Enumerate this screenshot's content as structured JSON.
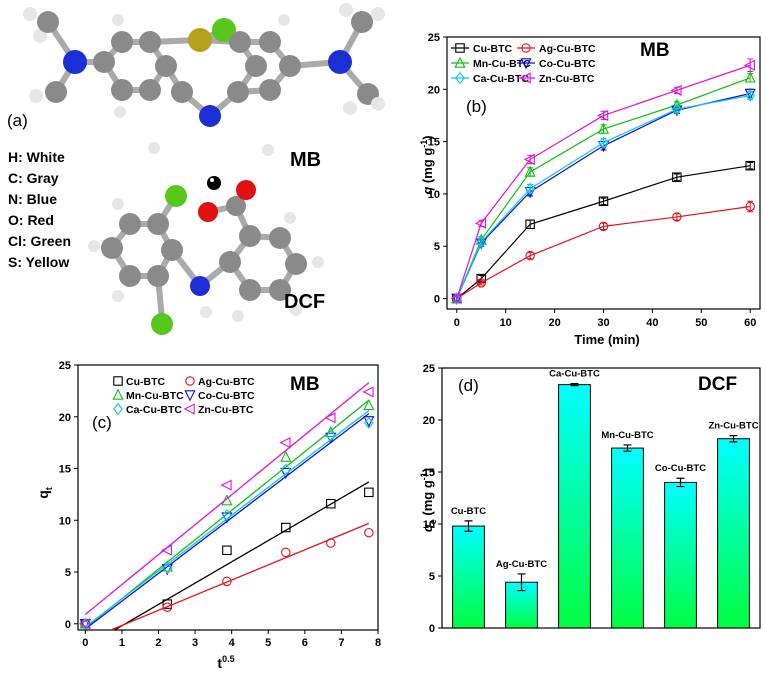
{
  "legend_atoms": {
    "panel_label": "(a)",
    "items": [
      "H: White",
      "C: Gray",
      "N: Blue",
      "O: Red",
      "Cl: Green",
      "S: Yellow"
    ],
    "mol1_label": "MB",
    "mol2_label": "DCF",
    "colors": {
      "H": "#e6e6e6",
      "C": "#8a8a8a",
      "N": "#1b2fd6",
      "O": "#e01010",
      "Cl": "#56c81c",
      "S": "#b5a21a"
    }
  },
  "chart_data": [
    {
      "panel": "(b)",
      "type": "line",
      "title": "MB",
      "xlabel": "Time (min)",
      "ylabel_parts": [
        "q",
        " (mg g",
        "-1",
        ")"
      ],
      "x": [
        0,
        5,
        15,
        30,
        45,
        60
      ],
      "xlim": [
        -2,
        62
      ],
      "ylim": [
        -1,
        25
      ],
      "xticks": [
        0,
        10,
        20,
        30,
        40,
        50,
        60
      ],
      "yticks": [
        0,
        5,
        10,
        15,
        20,
        25
      ],
      "series": [
        {
          "name": "Cu-BTC",
          "color": "#000000",
          "marker": "square",
          "values": [
            0,
            1.9,
            7.1,
            9.3,
            11.6,
            12.7
          ],
          "errors": [
            0.2,
            0.3,
            0.4,
            0.3,
            0.3,
            0.3
          ]
        },
        {
          "name": "Ag-Cu-BTC",
          "color": "#e8101a",
          "marker": "circle",
          "values": [
            0,
            1.5,
            4.1,
            6.9,
            7.8,
            8.8
          ],
          "errors": [
            0.2,
            0.2,
            0.3,
            0.3,
            0.3,
            0.5
          ]
        },
        {
          "name": "Mn-Cu-BTC",
          "color": "#10c010",
          "marker": "triangle",
          "values": [
            0,
            5.6,
            12.1,
            16.2,
            18.5,
            21.1
          ],
          "errors": [
            0.3,
            0.3,
            0.4,
            0.4,
            0.3,
            0.4
          ]
        },
        {
          "name": "Co-Cu-BTC",
          "color": "#0a10d8",
          "marker": "triangle-down",
          "values": [
            0,
            5.3,
            10.2,
            14.6,
            18.0,
            19.6
          ],
          "errors": [
            0.3,
            0.3,
            0.4,
            0.4,
            0.3,
            0.4
          ]
        },
        {
          "name": "Ca-Cu-BTC",
          "color": "#10c8e8",
          "marker": "diamond",
          "values": [
            0,
            5.4,
            10.5,
            14.9,
            18.1,
            19.4
          ],
          "errors": [
            0.3,
            0.3,
            0.4,
            0.4,
            0.3,
            0.4
          ]
        },
        {
          "name": "Zn-Cu-BTC",
          "color": "#e010e0",
          "marker": "triangle-left",
          "values": [
            0,
            7.2,
            13.3,
            17.5,
            19.9,
            22.3
          ],
          "errors": [
            0.3,
            0.3,
            0.4,
            0.4,
            0.3,
            0.6
          ]
        }
      ]
    },
    {
      "panel": "(c)",
      "type": "scatter",
      "title": "MB",
      "xlabel_base": "t",
      "xlabel_sup": "0.5",
      "ylabel_base": "q",
      "ylabel_sub": "t",
      "x": [
        0,
        2.24,
        3.87,
        5.48,
        6.71,
        7.75
      ],
      "xlim": [
        -0.2,
        8
      ],
      "ylim": [
        -0.6,
        25
      ],
      "xticks": [
        0,
        1,
        2,
        3,
        4,
        5,
        6,
        7,
        8
      ],
      "yticks": [
        0,
        5,
        10,
        15,
        20,
        25
      ],
      "series": [
        {
          "name": "Cu-BTC",
          "color": "#000000",
          "marker": "square",
          "values": [
            0,
            1.9,
            7.1,
            9.3,
            11.6,
            12.7
          ],
          "fit": [
            [
              0.8,
              -0.6
            ],
            [
              7.75,
              13.7
            ]
          ]
        },
        {
          "name": "Ag-Cu-BTC",
          "color": "#e8101a",
          "marker": "circle",
          "values": [
            0,
            1.6,
            4.1,
            6.9,
            7.8,
            8.8
          ],
          "fit": [
            [
              0.7,
              -0.6
            ],
            [
              7.75,
              9.7
            ]
          ]
        },
        {
          "name": "Mn-Cu-BTC",
          "color": "#10c010",
          "marker": "triangle",
          "values": [
            0,
            5.5,
            11.9,
            16.1,
            18.5,
            21.1
          ],
          "fit": [
            [
              0,
              -0.4
            ],
            [
              7.75,
              21.6
            ]
          ]
        },
        {
          "name": "Co-Cu-BTC",
          "color": "#0a10d8",
          "marker": "triangle-down",
          "values": [
            0,
            5.3,
            10.3,
            14.6,
            18.0,
            19.6
          ],
          "fit": [
            [
              0,
              -0.5
            ],
            [
              7.75,
              20.3
            ]
          ]
        },
        {
          "name": "Ca-Cu-BTC",
          "color": "#10c8e8",
          "marker": "diamond",
          "values": [
            0,
            5.4,
            10.5,
            14.9,
            18.2,
            19.4
          ],
          "fit": [
            [
              0,
              -0.3
            ],
            [
              7.75,
              20.6
            ]
          ]
        },
        {
          "name": "Zn-Cu-BTC",
          "color": "#e010e0",
          "marker": "triangle-left",
          "values": [
            0,
            7.1,
            13.4,
            17.5,
            19.9,
            22.4
          ],
          "fit": [
            [
              0,
              0.9
            ],
            [
              7.75,
              23.3
            ]
          ]
        }
      ]
    },
    {
      "panel": "(d)",
      "type": "bar",
      "title": "DCF",
      "ylabel_parts": [
        "q",
        "e",
        " (mg g",
        "-1",
        ")"
      ],
      "ylim": [
        0,
        25
      ],
      "yticks": [
        0,
        5,
        10,
        15,
        20,
        25
      ],
      "categories": [
        "Cu-BTC",
        "Ag-Cu-BTC",
        "Ca-Cu-BTC",
        "Mn-Cu-BTC",
        "Co-Cu-BTC",
        "Zn-Cu-BTC"
      ],
      "values": [
        9.8,
        4.4,
        23.4,
        17.3,
        14.0,
        18.2
      ],
      "errors": [
        0.5,
        0.8,
        0.1,
        0.3,
        0.4,
        0.3
      ],
      "bar_gradient": [
        "#00ffff",
        "#00ff40"
      ]
    }
  ]
}
